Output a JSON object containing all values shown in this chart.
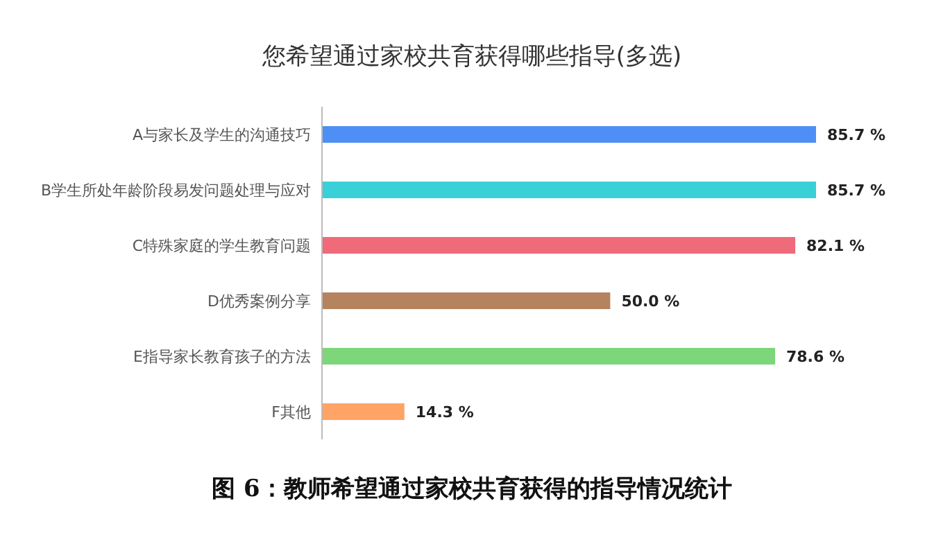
{
  "chart_data": {
    "type": "bar",
    "orientation": "horizontal",
    "title": "您希望通过家校共育获得哪些指导(多选)",
    "categories": [
      "A与家长及学生的沟通技巧",
      "B学生所处年龄阶段易发问题处理与应对",
      "C特殊家庭的学生教育问题",
      "D优秀案例分享",
      "E指导家长教育孩子的方法",
      "F其他"
    ],
    "values": [
      85.7,
      85.7,
      82.1,
      50.0,
      78.6,
      14.3
    ],
    "colors": [
      "#4e8ff5",
      "#3ad0d8",
      "#ef6b7a",
      "#b5835e",
      "#7dd67a",
      "#ffa366"
    ],
    "value_labels": [
      "85.7 %",
      "85.7 %",
      "82.1 %",
      "50.0 %",
      "78.6 %",
      "14.3 %"
    ],
    "annotations": [
      "图 6：教师希望通过家校共育获得的指导情况统计"
    ]
  }
}
